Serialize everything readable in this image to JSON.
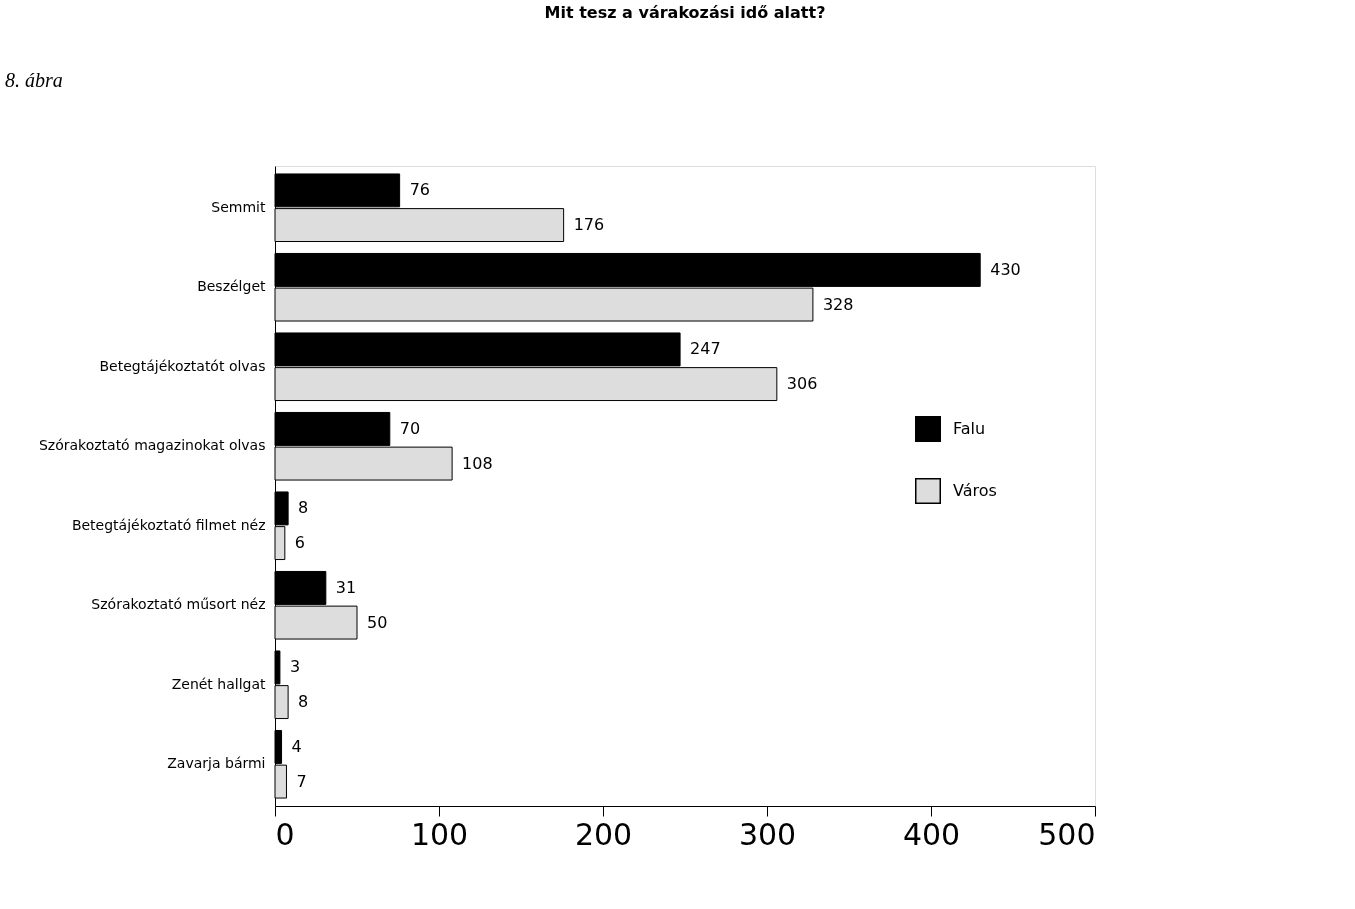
{
  "chart_data": {
    "type": "bar",
    "orientation": "horizontal",
    "title": "Mit tesz a várakozási idő alatt?",
    "annotations": [
      "8. ábra"
    ],
    "categories": [
      "Semmit",
      "Beszélget",
      "Betegtájékoztatót olvas",
      "Szórakoztató magazinokat olvas",
      "Betegtájékoztató filmet néz",
      "Szórakoztató műsort néz",
      "Zenét hallgat",
      "Zavarja bármi"
    ],
    "series": [
      {
        "name": "Falu",
        "color": "#000000",
        "values": [
          76,
          430,
          247,
          70,
          8,
          31,
          3,
          4
        ]
      },
      {
        "name": "Város",
        "color": "#dddddd",
        "values": [
          176,
          328,
          306,
          108,
          6,
          50,
          8,
          7
        ]
      }
    ],
    "xlim": [
      0,
      500
    ],
    "xticks": [
      0,
      100,
      200,
      300,
      400,
      500
    ],
    "data_labels": true,
    "grid": false,
    "legend": "right"
  }
}
